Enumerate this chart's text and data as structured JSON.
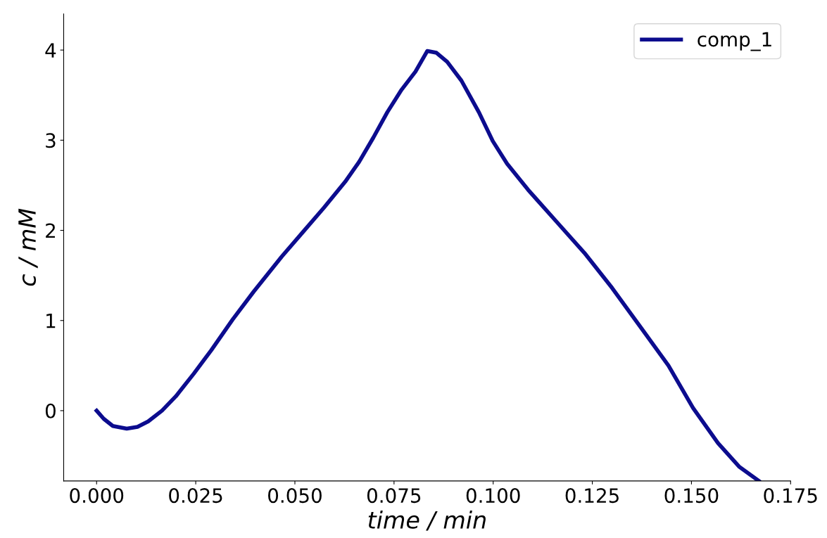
{
  "chart_data": {
    "type": "line",
    "xlabel": "time / min",
    "ylabel": "c / mM",
    "x": [
      0,
      0.0018,
      0.0041,
      0.0076,
      0.0103,
      0.013,
      0.0165,
      0.02,
      0.0245,
      0.0289,
      0.0343,
      0.0396,
      0.0467,
      0.052,
      0.0573,
      0.0627,
      0.0662,
      0.0698,
      0.0733,
      0.0769,
      0.0804,
      0.0834,
      0.0857,
      0.0884,
      0.092,
      0.0964,
      0.0999,
      0.1035,
      0.1088,
      0.1159,
      0.123,
      0.13,
      0.1371,
      0.1442,
      0.1504,
      0.1567,
      0.162,
      0.167
    ],
    "series": [
      {
        "name": "comp_1",
        "color": "#0c0c8e",
        "values": [
          0,
          -0.09,
          -0.17,
          -0.2,
          -0.18,
          -0.12,
          0,
          0.16,
          0.41,
          0.67,
          1.01,
          1.32,
          1.71,
          1.98,
          2.25,
          2.54,
          2.76,
          3.03,
          3.31,
          3.56,
          3.76,
          3.99,
          3.97,
          3.87,
          3.66,
          3.31,
          2.99,
          2.74,
          2.45,
          2.1,
          1.75,
          1.36,
          0.93,
          0.5,
          0.03,
          -0.36,
          -0.62,
          -0.78
        ]
      }
    ],
    "xlim": [
      -0.0083,
      0.175
    ],
    "ylim": [
      -0.78,
      4.4
    ],
    "xticks": [
      {
        "value": 0,
        "label": "0.000"
      },
      {
        "value": 0.025,
        "label": "0.025"
      },
      {
        "value": 0.05,
        "label": "0.050"
      },
      {
        "value": 0.075,
        "label": "0.075"
      },
      {
        "value": 0.1,
        "label": "0.100"
      },
      {
        "value": 0.125,
        "label": "0.125"
      },
      {
        "value": 0.15,
        "label": "0.150"
      },
      {
        "value": 0.175,
        "label": "0.175"
      }
    ],
    "yticks": [
      0,
      1,
      2,
      3,
      4
    ],
    "legend": "top right",
    "grid": false,
    "line_style": "solid",
    "marker": "none"
  }
}
